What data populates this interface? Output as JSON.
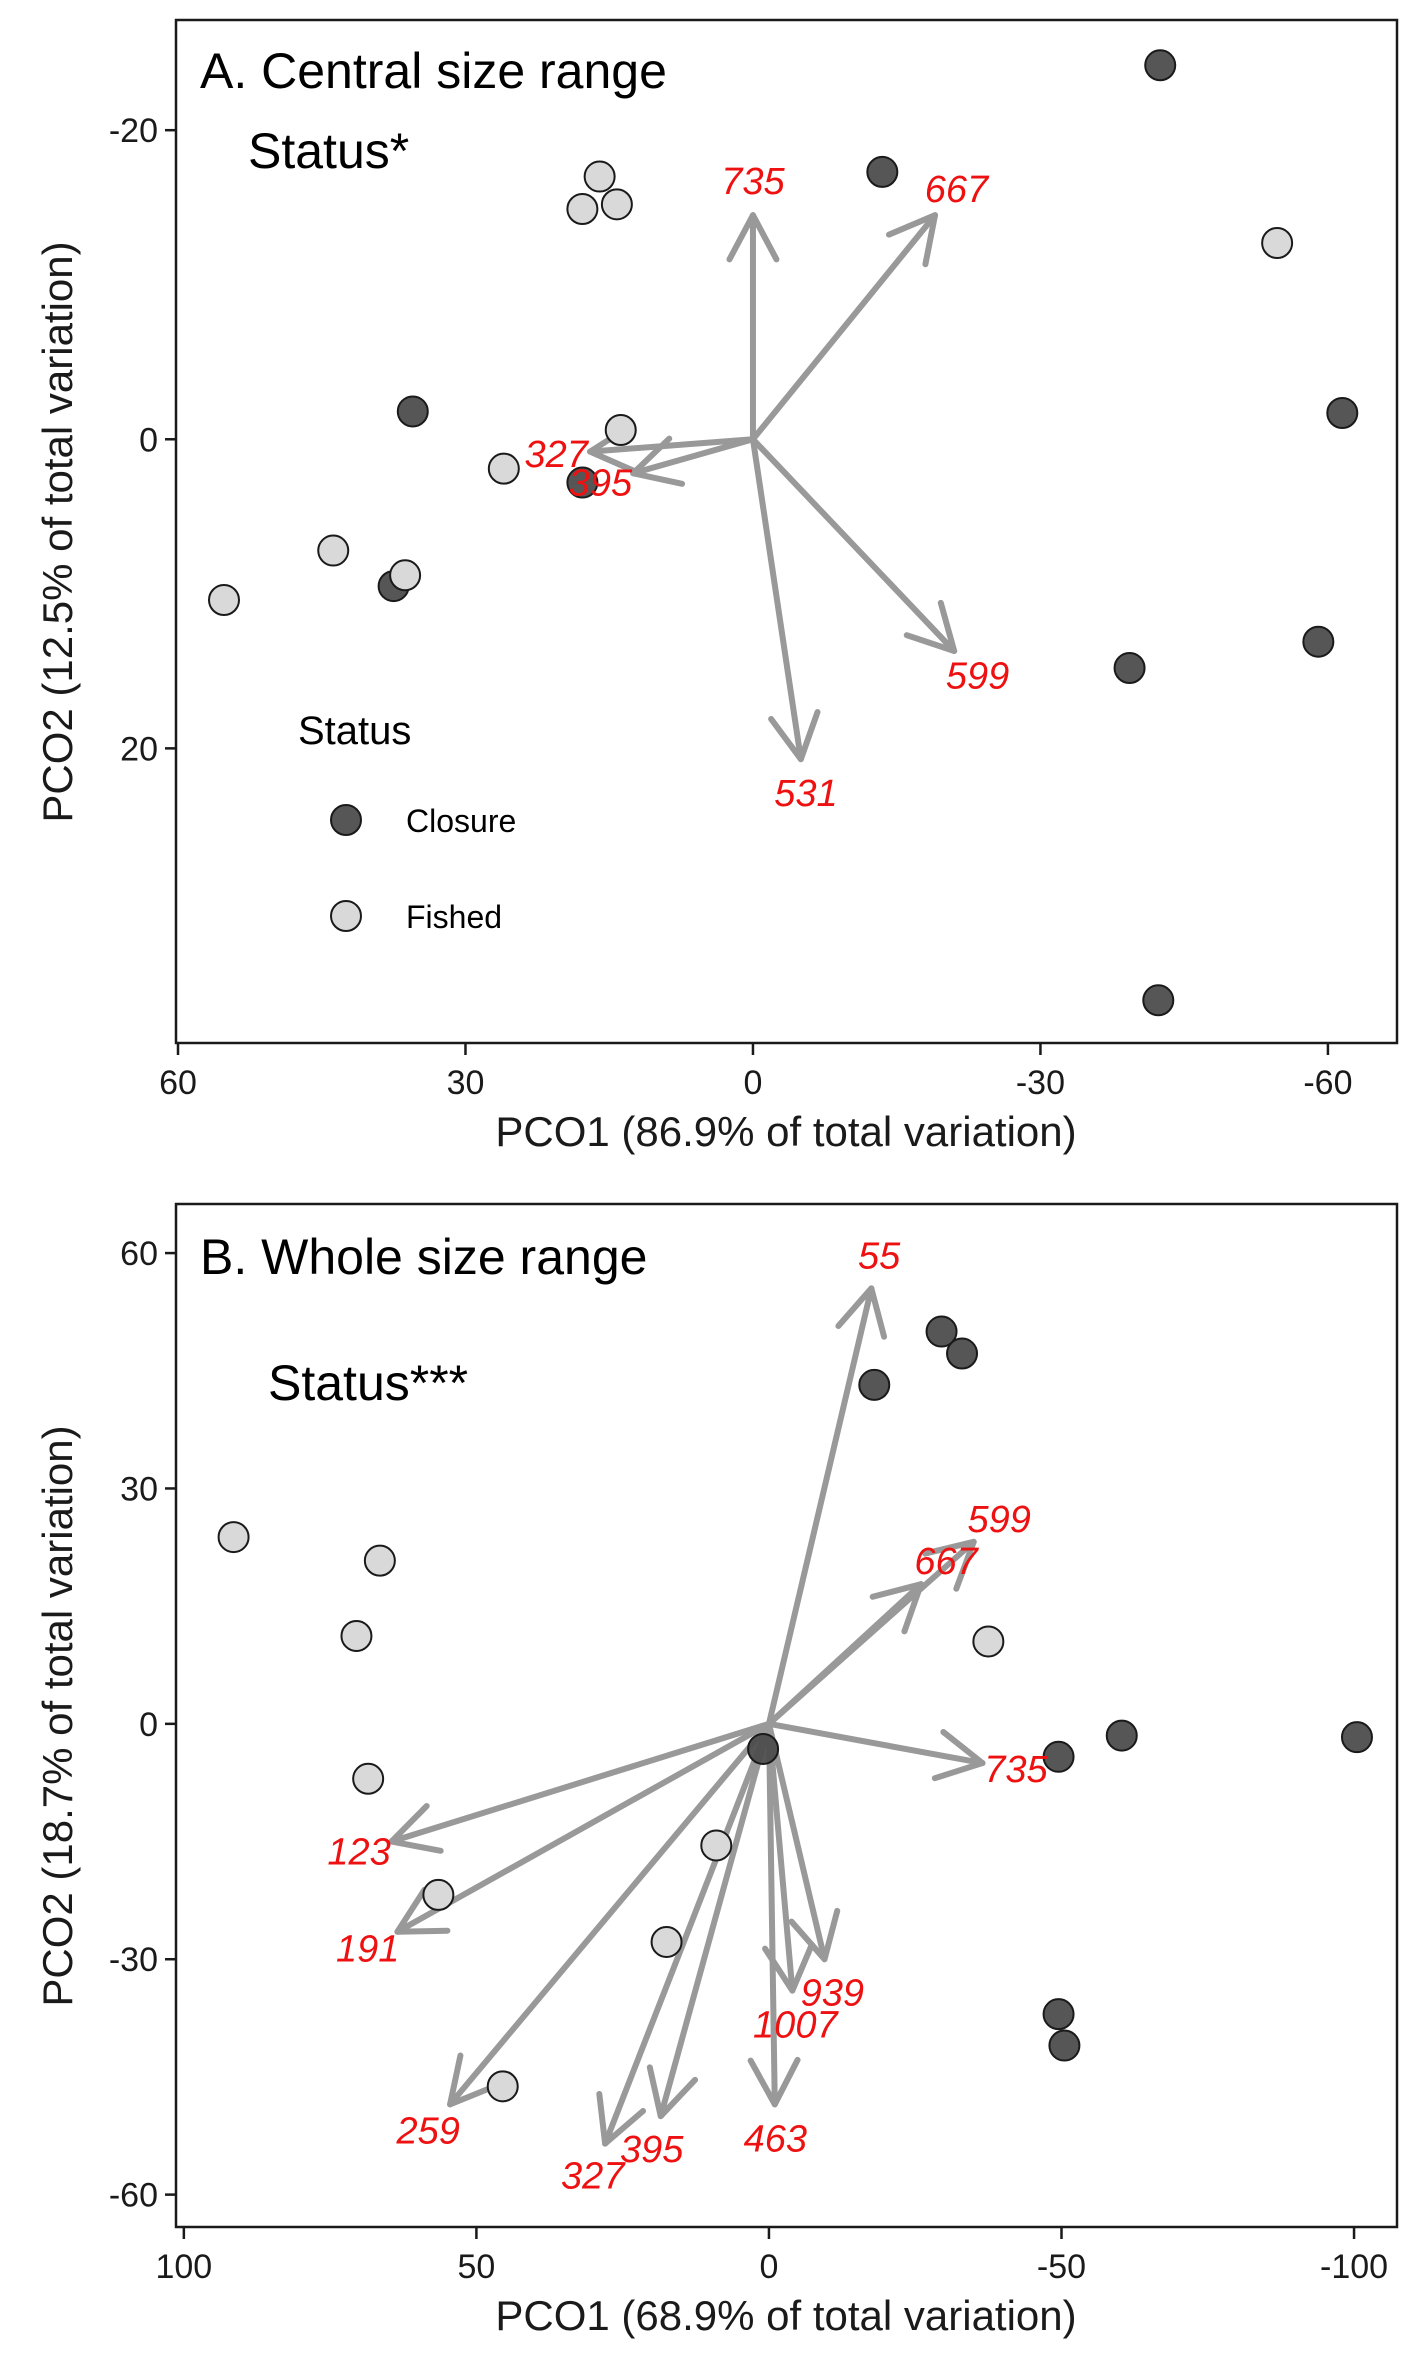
{
  "colors": {
    "closure": "#4d4d4d",
    "fished": "#d9d9d9",
    "vector": "#999999",
    "vector_label": "#ee1111"
  },
  "chart_data": [
    {
      "type": "scatter",
      "title": "A. Central size range",
      "annotation": "Status*",
      "xlabel": "PCO1 (86.9% of total variation)",
      "ylabel": "PCO2 (12.5% of total variation)",
      "xlim": [
        60,
        -67
      ],
      "ylim": [
        -27,
        39
      ],
      "x_reversed": true,
      "y_reversed": true,
      "xticks": [
        60,
        30,
        0,
        -30,
        -60
      ],
      "xtick_labels": [
        "60",
        "30",
        "0",
        "-30",
        "-60"
      ],
      "yticks": [
        -20,
        0,
        20
      ],
      "ytick_labels": [
        "-20",
        "0",
        "20"
      ],
      "grid": false,
      "legend": {
        "title": "Status",
        "position": "bottom-left",
        "entries": [
          "Closure",
          "Fished"
        ]
      },
      "series": [
        {
          "name": "Closure",
          "color": "#4d4d4d",
          "points": [
            [
              -42.5,
              -24.2
            ],
            [
              -13.5,
              -17.3
            ],
            [
              -61.5,
              -1.7
            ],
            [
              35.5,
              -1.8
            ],
            [
              17.8,
              2.8
            ],
            [
              37.5,
              9.5
            ],
            [
              -59,
              13.1
            ],
            [
              -39.3,
              14.8
            ],
            [
              -42.3,
              36.3
            ]
          ]
        },
        {
          "name": "Fished",
          "color": "#d9d9d9",
          "points": [
            [
              16,
              -17.0
            ],
            [
              17.8,
              -14.9
            ],
            [
              14.2,
              -15.2
            ],
            [
              -54.7,
              -12.7
            ],
            [
              13.8,
              -0.6
            ],
            [
              26,
              1.9
            ],
            [
              43.8,
              7.2
            ],
            [
              36.3,
              8.8
            ],
            [
              55.2,
              10.4
            ]
          ]
        }
      ],
      "vectors": [
        {
          "label": "735",
          "x": 0,
          "y": -14.5
        },
        {
          "label": "667",
          "x": -19,
          "y": -14.5
        },
        {
          "label": "327",
          "x": 17,
          "y": 0.8
        },
        {
          "label": "395",
          "x": 12.5,
          "y": 2.2
        },
        {
          "label": "599",
          "x": -21,
          "y": 13.7
        },
        {
          "label": "531",
          "x": -5,
          "y": 20.7
        }
      ]
    },
    {
      "type": "scatter",
      "title": "B. Whole size range",
      "annotation": "Status***",
      "xlabel": "PCO1 (68.9% of total variation)",
      "ylabel": "PCO2 (18.7% of total variation)",
      "xlim": [
        101,
        -107
      ],
      "ylim": [
        -64,
        66
      ],
      "x_reversed": true,
      "xticks": [
        100,
        50,
        0,
        -50,
        -100
      ],
      "xtick_labels": [
        "100",
        "50",
        "0",
        "-50",
        "-100"
      ],
      "yticks": [
        60,
        30,
        0,
        -30,
        -60
      ],
      "ytick_labels": [
        "60",
        "30",
        "0",
        "-30",
        "-60"
      ],
      "grid": false,
      "series": [
        {
          "name": "Closure",
          "color": "#4d4d4d",
          "points": [
            [
              -29.5,
              50
            ],
            [
              -33,
              47.2
            ],
            [
              -18,
              43.2
            ],
            [
              -100.5,
              -1.7
            ],
            [
              -60.3,
              -1.5
            ],
            [
              -49.5,
              -4.2
            ],
            [
              1,
              -3.2
            ],
            [
              -49.5,
              -37
            ],
            [
              -50.5,
              -41
            ]
          ]
        },
        {
          "name": "Fished",
          "color": "#d9d9d9",
          "points": [
            [
              91.5,
              23.8
            ],
            [
              66.5,
              20.8
            ],
            [
              70.5,
              11.2
            ],
            [
              -37.5,
              10.5
            ],
            [
              68.5,
              -7
            ],
            [
              9,
              -15.5
            ],
            [
              56.5,
              -21.8
            ],
            [
              17.5,
              -27.8
            ],
            [
              45.5,
              -46.2
            ]
          ]
        }
      ],
      "vectors": [
        {
          "label": "55",
          "x": -17.5,
          "y": 55.5
        },
        {
          "label": "599",
          "x": -35,
          "y": 23.2
        },
        {
          "label": "667",
          "x": -26,
          "y": 17.8
        },
        {
          "label": "735",
          "x": -36.5,
          "y": -5
        },
        {
          "label": "123",
          "x": 64.5,
          "y": -15
        },
        {
          "label": "191",
          "x": 63.5,
          "y": -26.5
        },
        {
          "label": "259",
          "x": 54.5,
          "y": -48.5
        },
        {
          "label": "327",
          "x": 28,
          "y": -53.5
        },
        {
          "label": "395",
          "x": 18.5,
          "y": -50
        },
        {
          "label": "463",
          "x": -1,
          "y": -48.5
        },
        {
          "label": "939",
          "x": -9.5,
          "y": -30
        },
        {
          "label": "1007",
          "x": -4,
          "y": -34
        }
      ]
    }
  ]
}
